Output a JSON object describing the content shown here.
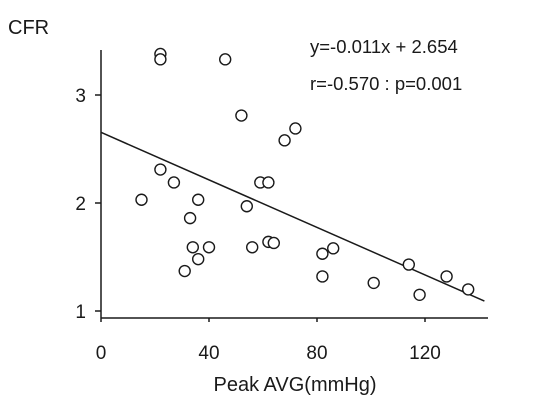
{
  "chart_data": {
    "type": "scatter",
    "ylabel": "CFR",
    "xlabel": "Peak AVG(mmHg)",
    "xlim": [
      0,
      140
    ],
    "ylim": [
      0.9,
      3.5
    ],
    "x_ticks": [
      0,
      40,
      80,
      120
    ],
    "y_ticks": [
      1,
      2,
      3
    ],
    "annotations": {
      "equation": "y=-0.011x + 2.654",
      "stats": "r=-0.570 : p=0.001"
    },
    "fit_line": {
      "slope": -0.011,
      "intercept": 2.654
    },
    "points": [
      {
        "x": 15,
        "y": 2.03
      },
      {
        "x": 22,
        "y": 3.38
      },
      {
        "x": 22,
        "y": 3.33
      },
      {
        "x": 22,
        "y": 2.31
      },
      {
        "x": 27,
        "y": 2.19
      },
      {
        "x": 31,
        "y": 1.37
      },
      {
        "x": 33,
        "y": 1.86
      },
      {
        "x": 34,
        "y": 1.59
      },
      {
        "x": 36,
        "y": 2.03
      },
      {
        "x": 36,
        "y": 1.48
      },
      {
        "x": 40,
        "y": 1.59
      },
      {
        "x": 46,
        "y": 3.33
      },
      {
        "x": 52,
        "y": 2.81
      },
      {
        "x": 54,
        "y": 1.97
      },
      {
        "x": 56,
        "y": 1.59
      },
      {
        "x": 59,
        "y": 2.19
      },
      {
        "x": 62,
        "y": 2.19
      },
      {
        "x": 62,
        "y": 1.64
      },
      {
        "x": 64,
        "y": 1.63
      },
      {
        "x": 68,
        "y": 2.58
      },
      {
        "x": 72,
        "y": 2.69
      },
      {
        "x": 82,
        "y": 1.53
      },
      {
        "x": 82,
        "y": 1.32
      },
      {
        "x": 86,
        "y": 1.58
      },
      {
        "x": 101,
        "y": 1.26
      },
      {
        "x": 114,
        "y": 1.43
      },
      {
        "x": 118,
        "y": 1.15
      },
      {
        "x": 128,
        "y": 1.32
      },
      {
        "x": 136,
        "y": 1.2
      }
    ]
  }
}
